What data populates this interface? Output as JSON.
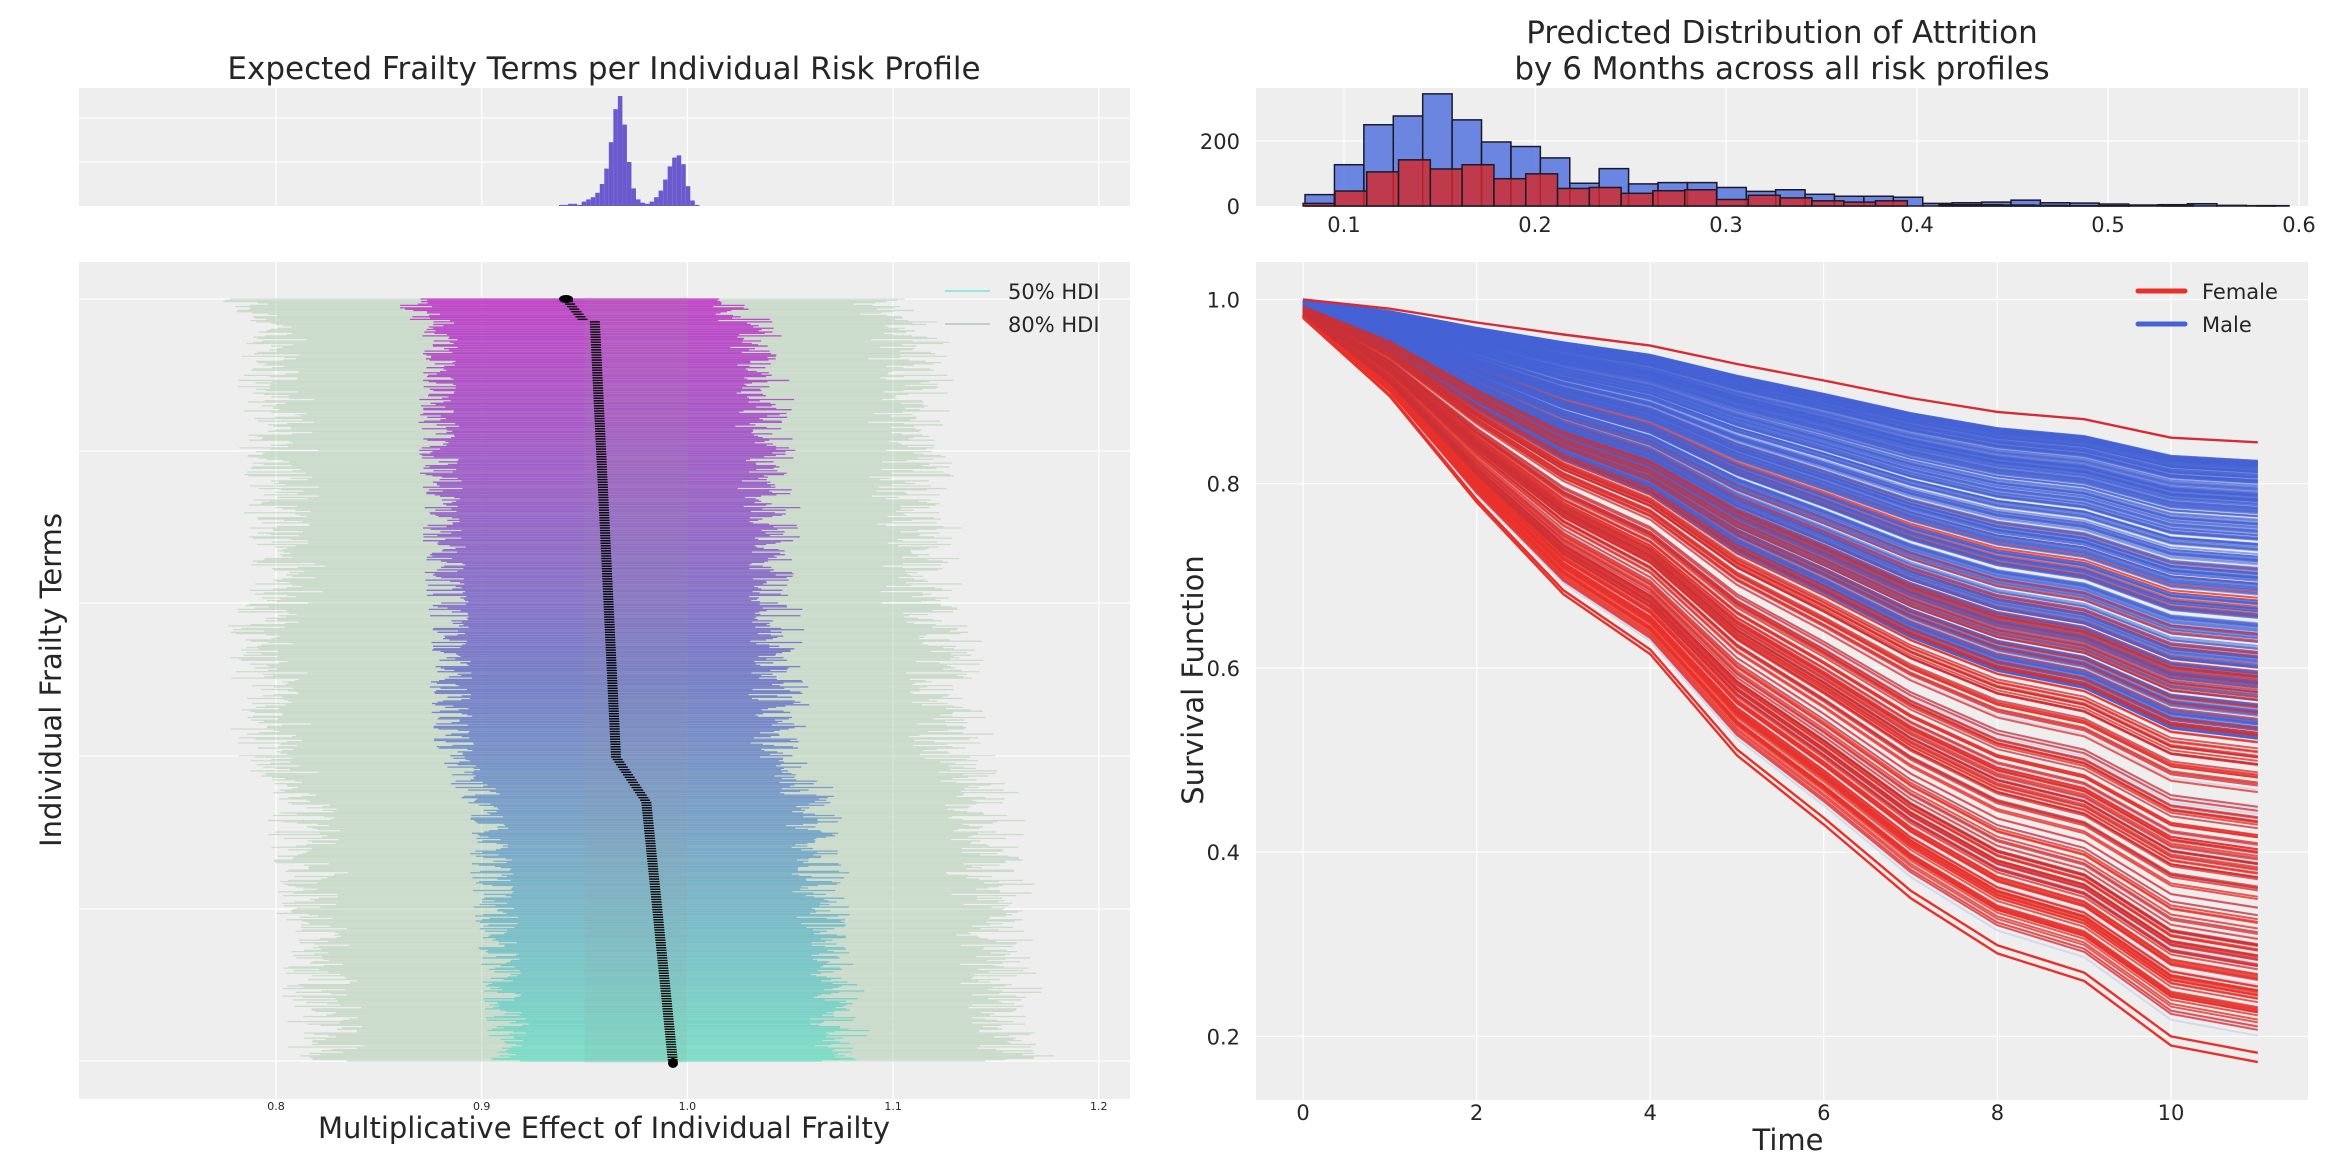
{
  "chart_data": [
    {
      "type": "bar",
      "subtype": "histogram",
      "panel": "top-left",
      "title": "Expected Frailty Terms per Individual Risk Profile",
      "xlabel": "",
      "ylabel": "",
      "xlim": [
        0.72,
        1.215
      ],
      "x_ticks": [],
      "y_ticks": [],
      "grid": true,
      "color": "#6a5acd",
      "bins_start": 0.9376,
      "bin_width": 0.0022,
      "counts": [
        1,
        1,
        2,
        2,
        1,
        4,
        6,
        8,
        12,
        20,
        34,
        58,
        88,
        100,
        74,
        40,
        16,
        6,
        3,
        2,
        4,
        8,
        14,
        24,
        36,
        44,
        46,
        38,
        18,
        5,
        1
      ]
    },
    {
      "type": "bar",
      "subtype": "forest",
      "panel": "bottom-left",
      "title": "",
      "xlabel": "Multiplicative Effect of Individual Frailty",
      "ylabel": "Individual Frailty Terms",
      "xlim": [
        0.72,
        1.215
      ],
      "x_ticks": [
        "0.8",
        "0.9",
        "1.0",
        "1.1",
        "1.2"
      ],
      "x_tick_values": [
        0.8,
        0.9,
        1.0,
        1.1,
        1.2
      ],
      "grid": true,
      "legend": {
        "placement": "top-right",
        "entries": [
          {
            "label": "50% HDI",
            "color": "#40e0d0"
          },
          {
            "label": "80% HDI",
            "color": "#8fbc8f"
          }
        ]
      },
      "n_individuals": 1000,
      "median_range": [
        0.94,
        0.993
      ],
      "hdi50_halfwidth": 0.085,
      "hdi80_halfwidth": 0.16,
      "reference_band": [
        0.95,
        1.0
      ],
      "gradient_colors": {
        "top": "#c030c8",
        "middle": "#6a70c8",
        "bottom": "#70e0c8"
      },
      "median_marker_color": "#000000"
    },
    {
      "type": "bar",
      "subtype": "histogram",
      "panel": "top-right",
      "title": "Predicted Distribution of Attrition\nby 6 Months across all risk profiles",
      "title_lines": [
        "Predicted Distribution of Attrition",
        "by 6 Months across all risk profiles"
      ],
      "xlabel": "",
      "ylabel": "",
      "xlim": [
        0.06,
        0.605
      ],
      "ylim": [
        0,
        363
      ],
      "x_ticks": [
        "0.1",
        "0.2",
        "0.3",
        "0.4",
        "0.5",
        "0.6"
      ],
      "x_tick_values": [
        0.1,
        0.2,
        0.3,
        0.4,
        0.5,
        0.6
      ],
      "y_ticks": [
        "0",
        "200"
      ],
      "y_tick_values": [
        0,
        200
      ],
      "grid": true,
      "series": [
        {
          "name": "Male",
          "color": "#4a6bdc",
          "bins_start": 0.0796,
          "bin_width": 0.0154,
          "counts": [
            35,
            127,
            250,
            277,
            345,
            265,
            197,
            183,
            148,
            70,
            115,
            68,
            72,
            72,
            57,
            45,
            50,
            36,
            30,
            30,
            27,
            8,
            10,
            12,
            18,
            10,
            9,
            6,
            3,
            4,
            7,
            2,
            1,
            0,
            0,
            0,
            0,
            0
          ]
        },
        {
          "name": "Female",
          "color": "#d62728",
          "bins_start": 0.0786,
          "bin_width": 0.01665,
          "counts": [
            8,
            46,
            105,
            142,
            114,
            127,
            84,
            99,
            54,
            57,
            39,
            47,
            50,
            20,
            33,
            25,
            16,
            12,
            16,
            0,
            4,
            4,
            3,
            2,
            1,
            1,
            0,
            2,
            0,
            0,
            1
          ]
        }
      ]
    },
    {
      "type": "line",
      "panel": "bottom-right",
      "title": "",
      "xlabel": "Time",
      "ylabel": "Survival Function",
      "xlim": [
        -0.55,
        11.55
      ],
      "ylim": [
        0.13,
        1.035
      ],
      "x_ticks": [
        "0",
        "2",
        "4",
        "6",
        "8",
        "10"
      ],
      "x_tick_values": [
        0,
        2,
        4,
        6,
        8,
        10
      ],
      "y_ticks": [
        "0.2",
        "0.4",
        "0.6",
        "0.8",
        "1.0"
      ],
      "y_tick_values": [
        0.2,
        0.4,
        0.6,
        0.8,
        1.0
      ],
      "grid": true,
      "legend": {
        "placement": "top-right",
        "entries": [
          {
            "label": "Female",
            "color": "#e8312a"
          },
          {
            "label": "Male",
            "color": "#4562d6"
          }
        ]
      },
      "x": [
        0,
        1,
        2,
        3,
        4,
        5,
        6,
        7,
        8,
        9,
        10,
        11
      ],
      "envelope": {
        "upper": [
          1.0,
          0.99,
          0.975,
          0.962,
          0.95,
          0.93,
          0.912,
          0.893,
          0.878,
          0.87,
          0.85,
          0.845
        ],
        "lower": [
          0.98,
          0.895,
          0.78,
          0.68,
          0.615,
          0.505,
          0.43,
          0.35,
          0.29,
          0.26,
          0.19,
          0.172
        ]
      },
      "series": [
        {
          "name": "Female",
          "color": "#e8312a",
          "n_curves": 160
        },
        {
          "name": "Male",
          "color": "#4562d6",
          "n_curves": 300
        }
      ]
    }
  ]
}
